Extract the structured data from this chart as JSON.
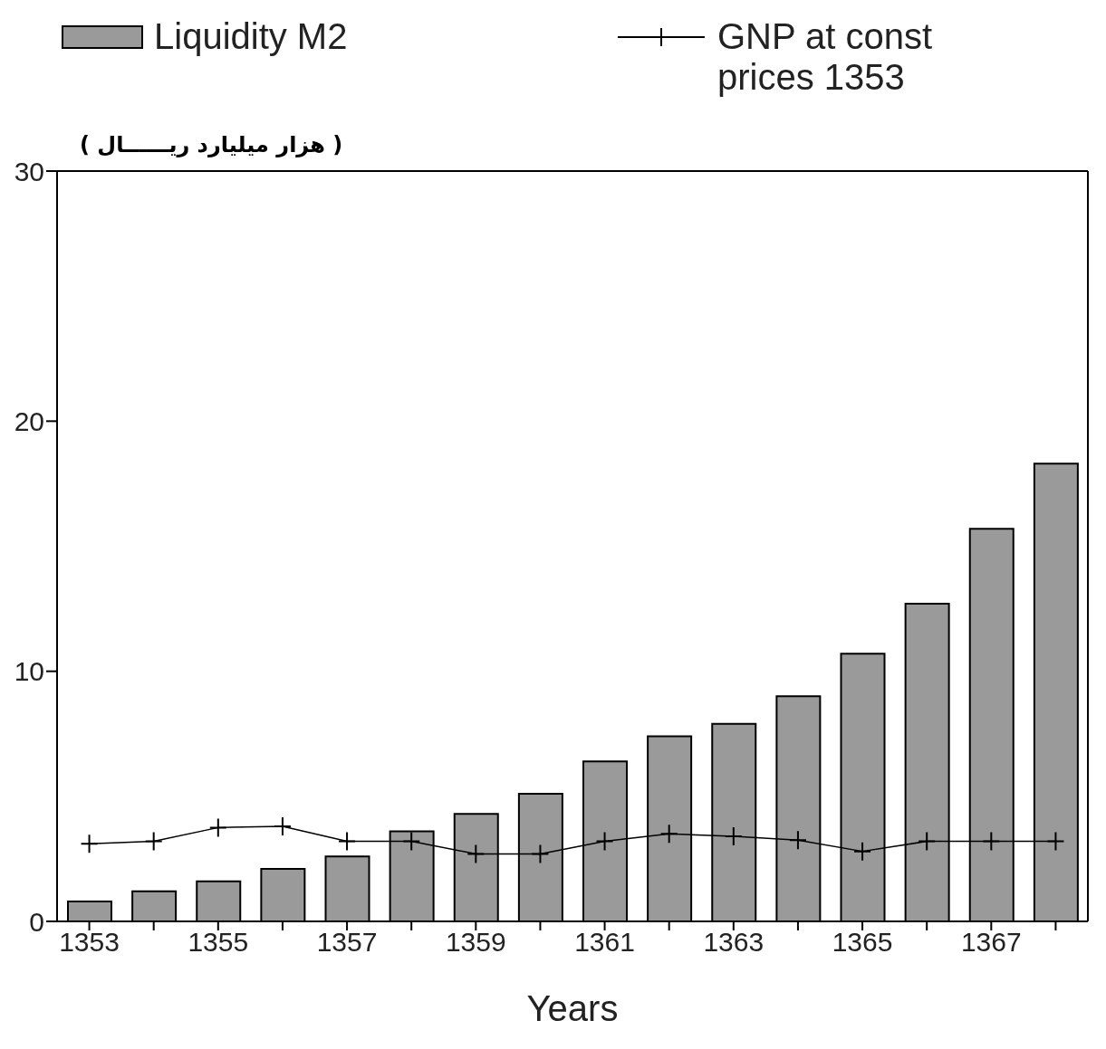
{
  "chart_data": {
    "type": "bar",
    "xlabel": "Years",
    "ylabel": "( هزار میلیارد ریــــــال )",
    "categories": [
      "1353",
      null,
      "1355",
      null,
      "1357",
      null,
      "1359",
      null,
      "1361",
      null,
      "1363",
      null,
      "1365",
      null,
      "1367",
      null
    ],
    "series": [
      {
        "name": "Liquidity M2",
        "color": "#9a9a9a",
        "values": [
          0.8,
          1.2,
          1.6,
          2.1,
          2.6,
          3.6,
          4.3,
          5.1,
          6.4,
          7.4,
          7.9,
          9.0,
          10.7,
          12.7,
          15.7,
          18.3
        ]
      },
      {
        "name": "GNP at const prices 1353",
        "type": "line",
        "color": "#000000",
        "marker": "cross",
        "line_style": "solid",
        "values": [
          3.1,
          3.2,
          3.75,
          3.8,
          3.2,
          3.2,
          2.7,
          2.7,
          3.2,
          3.5,
          3.4,
          3.25,
          2.8,
          3.2,
          3.2,
          3.2
        ]
      }
    ],
    "ylim": [
      0,
      30
    ],
    "yticks": [
      0,
      10,
      20,
      30
    ],
    "grid": false,
    "legend": "top"
  }
}
